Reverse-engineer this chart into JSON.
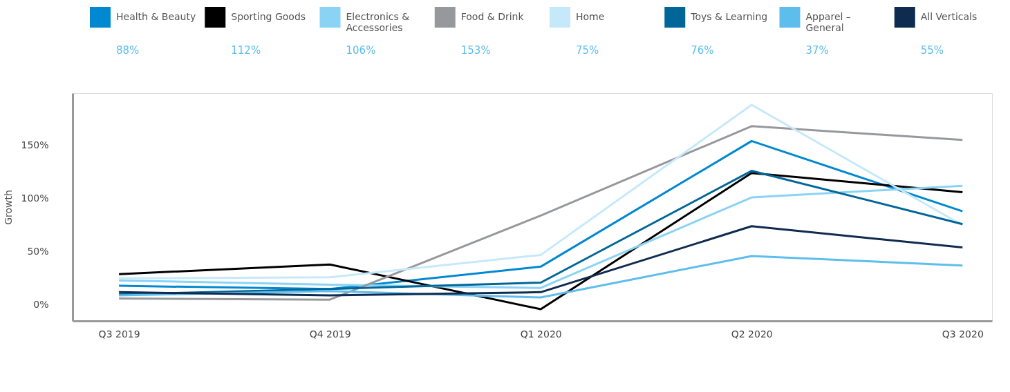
{
  "chart_data": {
    "type": "line",
    "ylabel": "Growth",
    "categories": [
      "Q3 2019",
      "Q4 2019",
      "Q1 2020",
      "Q2 2020",
      "Q3 2020"
    ],
    "ylim": [
      -15,
      199
    ],
    "yticks": [
      {
        "value": 0,
        "label": "0%"
      },
      {
        "value": 50,
        "label": "50%"
      },
      {
        "value": 100,
        "label": "100%"
      },
      {
        "value": 150,
        "label": "150%"
      }
    ],
    "grid": false,
    "legend": "top",
    "marker": "none",
    "line_style": "solid",
    "series": [
      {
        "name": "Health & Beauty",
        "color": "#0088d1",
        "values": [
          18,
          15,
          36,
          154,
          88
        ]
      },
      {
        "name": "Sporting Goods",
        "color": "#000000",
        "values": [
          29,
          38,
          -4,
          124,
          106
        ]
      },
      {
        "name": "Electronics & Accessories",
        "color": "#8ad3f5",
        "values": [
          23,
          19,
          16,
          101,
          112
        ]
      },
      {
        "name": "Food & Drink",
        "color": "#96989c",
        "values": [
          6,
          5,
          84,
          168,
          155
        ]
      },
      {
        "name": "Home",
        "color": "#c5e9fa",
        "values": [
          25,
          26,
          47,
          188,
          75
        ]
      },
      {
        "name": "Toys & Learning",
        "color": "#006699",
        "values": [
          10,
          15,
          21,
          126,
          76
        ]
      },
      {
        "name": "Apparel – General",
        "color": "#5dbdec",
        "values": [
          9,
          13,
          7,
          46,
          37
        ]
      },
      {
        "name": "All Verticals",
        "color": "#0f2b50",
        "values": [
          12,
          9,
          12,
          74,
          54
        ]
      }
    ],
    "annotations": [
      "88%",
      "112%",
      "106%",
      "153%",
      "75%",
      "76%",
      "37%",
      "55%"
    ]
  }
}
